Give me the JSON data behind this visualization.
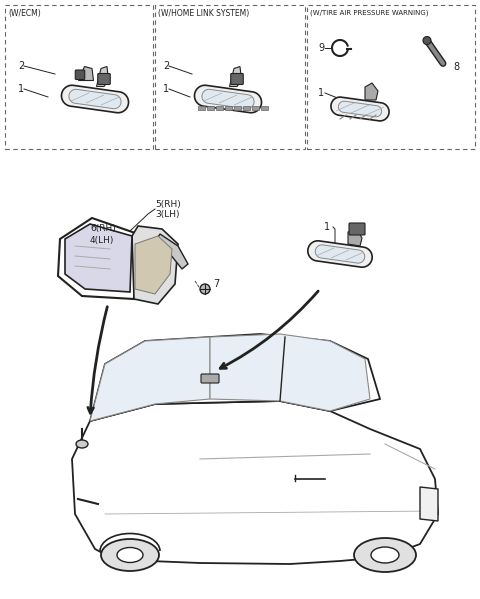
{
  "bg_color": "#ffffff",
  "box1_label": "(W/ECM)",
  "box2_label": "(W/HOME LINK SYSTEM)",
  "box3_label": "(W/TIRE AIR PRESSURE WARNING)",
  "fig_width": 4.8,
  "fig_height": 5.99,
  "dpi": 100,
  "line_color": "#222222",
  "gray_light": "#dddddd",
  "gray_mid": "#aaaaaa",
  "gray_dark": "#555555"
}
